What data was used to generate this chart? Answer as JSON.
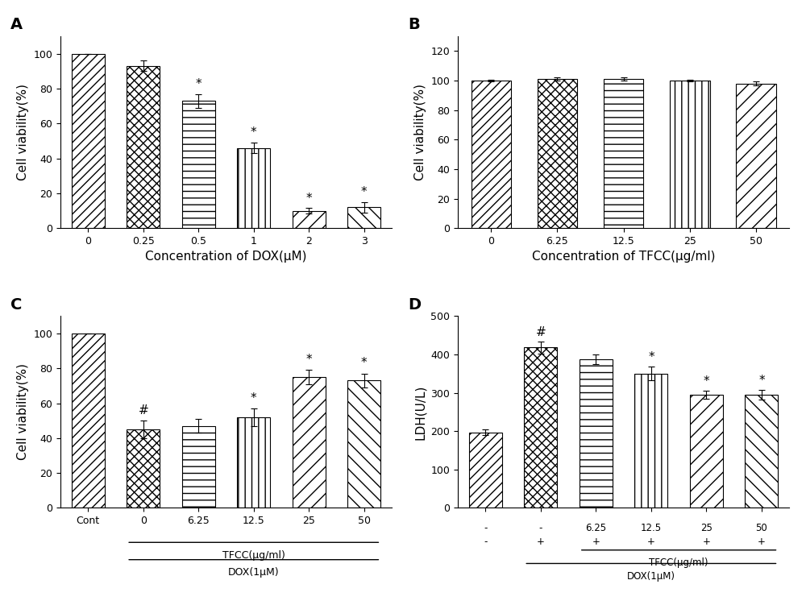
{
  "panel_A": {
    "categories": [
      "0",
      "0.25",
      "0.5",
      "1",
      "2",
      "3"
    ],
    "values": [
      100,
      93,
      73,
      46,
      10,
      12
    ],
    "errors": [
      0,
      3,
      4,
      3,
      1.5,
      3
    ],
    "xlabel": "Concentration of DOX(μM)",
    "ylabel": "Cell viability(%)",
    "ylim": [
      0,
      110
    ],
    "yticks": [
      0,
      20,
      40,
      60,
      80,
      100
    ],
    "sig_labels": [
      "",
      "",
      "*",
      "*",
      "*",
      "*"
    ],
    "hatch_patterns": [
      "//",
      "xx",
      "||--",
      "||||",
      "//xx",
      "xxx//"
    ],
    "label": "A"
  },
  "panel_B": {
    "categories": [
      "0",
      "6.25",
      "12.5",
      "25",
      "50"
    ],
    "values": [
      100,
      101,
      101,
      100,
      98
    ],
    "errors": [
      0.5,
      1,
      1.2,
      0.8,
      1.5
    ],
    "xlabel": "Concentration of TFCC(μg/ml)",
    "ylabel": "Cell viability(%)",
    "ylim": [
      0,
      130
    ],
    "yticks": [
      0,
      20,
      40,
      60,
      80,
      100,
      120
    ],
    "sig_labels": [
      "",
      "",
      "",
      "",
      ""
    ],
    "hatch_patterns": [
      "//",
      "xx",
      "//--",
      "||||",
      "xxx//"
    ],
    "label": "B"
  },
  "panel_C": {
    "categories": [
      "Cont",
      "0",
      "6.25",
      "12.5",
      "25",
      "50"
    ],
    "values": [
      100,
      45,
      47,
      52,
      75,
      73
    ],
    "errors": [
      0,
      5,
      4,
      5,
      4,
      4
    ],
    "xlabel_lines": [
      "TFCC(μg/ml)",
      "DOX(1μM)"
    ],
    "ylabel": "Cell viability(%)",
    "ylim": [
      0,
      110
    ],
    "yticks": [
      0,
      20,
      40,
      60,
      80,
      100
    ],
    "sig_labels": [
      "",
      "#",
      "",
      "*",
      "*",
      "*"
    ],
    "hatch_patterns": [
      "//",
      "xx",
      "//--",
      "||||",
      "xxx//",
      "//xx"
    ],
    "label": "C"
  },
  "panel_D": {
    "categories": [
      "-",
      "-",
      "6.25",
      "12.5",
      "25",
      "50"
    ],
    "values": [
      197,
      418,
      387,
      350,
      295,
      295
    ],
    "errors": [
      8,
      15,
      13,
      18,
      10,
      12
    ],
    "xlabel_line1": "TFCC(μg/ml)",
    "xlabel_line2": "DOX(1μM)",
    "row1_vals": [
      "-",
      "-",
      "6.25",
      "12.5",
      "25",
      "50"
    ],
    "row2_vals": [
      "-",
      "+",
      "+",
      "+",
      "+",
      "+"
    ],
    "ylabel": "LDH(U/L)",
    "ylim": [
      0,
      500
    ],
    "yticks": [
      0,
      100,
      200,
      300,
      400,
      500
    ],
    "sig_labels": [
      "",
      "#",
      "",
      "*",
      "*",
      "*"
    ],
    "hatch_patterns": [
      "//",
      "xx",
      "//--",
      "||||",
      "xxx//",
      "//xx"
    ],
    "label": "D"
  },
  "hatch_list": [
    {
      "hatch": "///",
      "fc": "white",
      "ec": "black"
    },
    {
      "hatch": "xxx",
      "fc": "white",
      "ec": "black"
    },
    {
      "hatch": "---",
      "fc": "white",
      "ec": "black"
    },
    {
      "hatch": "|||",
      "fc": "white",
      "ec": "black"
    },
    {
      "hatch": "///",
      "fc": "white",
      "ec": "black"
    },
    {
      "hatch": "\\\\\\",
      "fc": "white",
      "ec": "black"
    }
  ],
  "background_color": "#f0f0f0",
  "bar_ec": "black",
  "bar_lw": 0.8,
  "fontsize_label": 11,
  "fontsize_tick": 9,
  "fontsize_sig": 11
}
